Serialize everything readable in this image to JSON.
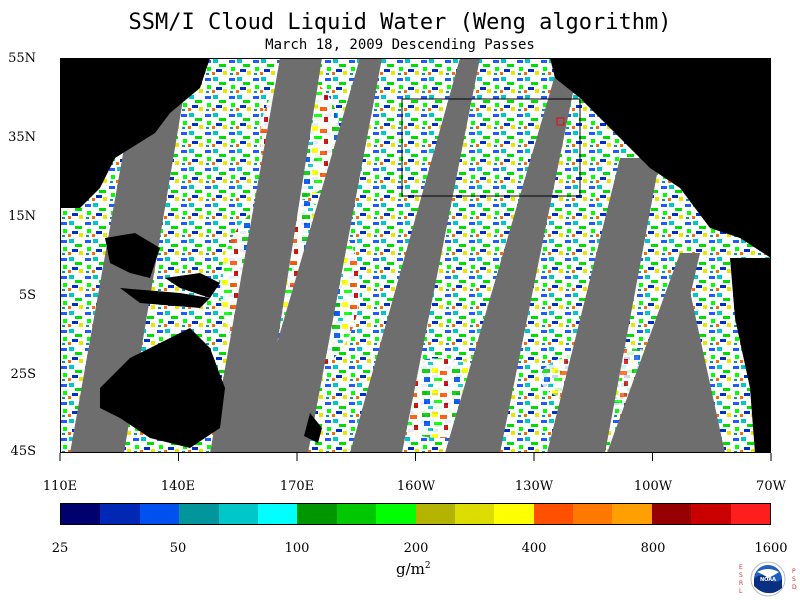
{
  "title": "SSM/I Cloud Liquid Water (Weng algorithm)",
  "subtitle": "March 18, 2009  Descending Passes",
  "lat_labels": [
    "55N",
    "35N",
    "15N",
    "5S",
    "25S",
    "45S"
  ],
  "lon_labels": [
    "110E",
    "140E",
    "170E",
    "160W",
    "130W",
    "100W",
    "70W"
  ],
  "colorbar": {
    "colors": [
      "#00006e",
      "#0028b4",
      "#0050f0",
      "#00969b",
      "#00c8c8",
      "#00ffff",
      "#009600",
      "#00c800",
      "#00ff00",
      "#b4b400",
      "#dcdc00",
      "#ffff00",
      "#ff5000",
      "#ff7800",
      "#ffa000",
      "#960000",
      "#c80000",
      "#ff1e1e"
    ],
    "labels": [
      "25",
      "50",
      "100",
      "200",
      "400",
      "800",
      "1600"
    ]
  },
  "units_base": "g/m",
  "units_sup": "2",
  "logo": {
    "left_text": "ESRL",
    "right_text": "PSD",
    "center_text": "NOAA"
  }
}
